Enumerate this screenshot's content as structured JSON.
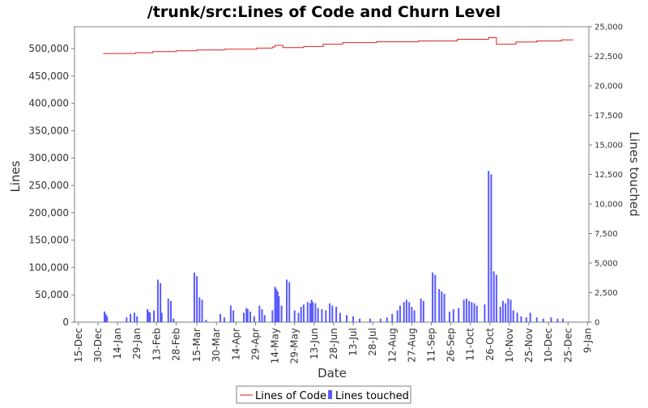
{
  "chart_data": {
    "type": "bar",
    "title": "/trunk/src:Lines of Code and Churn Level",
    "xlabel": "Date",
    "ylabel_left": "Lines",
    "ylabel_right": "Lines touched",
    "ylim_left": [
      0,
      540000
    ],
    "ylim_right": [
      0,
      25000
    ],
    "x_domain": [
      "2003-12-12",
      "2005-01-10"
    ],
    "x_ticks": [
      "15-Dec",
      "30-Dec",
      "14-Jan",
      "29-Jan",
      "13-Feb",
      "28-Feb",
      "15-Mar",
      "30-Mar",
      "14-Apr",
      "29-Apr",
      "14-May",
      "29-May",
      "13-Jun",
      "28-Jun",
      "13-Jul",
      "28-Jul",
      "12-Aug",
      "27-Aug",
      "11-Sep",
      "26-Sep",
      "11-Oct",
      "26-Oct",
      "10-Nov",
      "25-Nov",
      "10-Dec",
      "25-Dec",
      "9-Jan"
    ],
    "x_tick_dates": [
      "2003-12-15",
      "2003-12-30",
      "2004-01-14",
      "2004-01-29",
      "2004-02-13",
      "2004-02-28",
      "2004-03-15",
      "2004-03-30",
      "2004-04-14",
      "2004-04-29",
      "2004-05-14",
      "2004-05-29",
      "2004-06-13",
      "2004-06-28",
      "2004-07-13",
      "2004-07-28",
      "2004-08-12",
      "2004-08-27",
      "2004-09-11",
      "2004-09-26",
      "2004-10-11",
      "2004-10-26",
      "2004-11-10",
      "2004-11-25",
      "2004-12-10",
      "2004-12-25",
      "2005-01-09"
    ],
    "y_ticks_left": [
      0,
      50000,
      100000,
      150000,
      200000,
      250000,
      300000,
      350000,
      400000,
      450000,
      500000
    ],
    "y_tick_labels_left": [
      "0",
      "50,000",
      "100,000",
      "150,000",
      "200,000",
      "250,000",
      "300,000",
      "350,000",
      "400,000",
      "450,000",
      "500,000"
    ],
    "y_ticks_right": [
      0,
      2500,
      5000,
      7500,
      10000,
      12500,
      15000,
      17500,
      20000,
      22500,
      25000
    ],
    "y_tick_labels_right": [
      "0",
      "2,500",
      "5,000",
      "7,500",
      "10,000",
      "12,500",
      "15,000",
      "17,500",
      "20,000",
      "22,500",
      "25,000"
    ],
    "grid": false,
    "legend": "bottom-center",
    "series": [
      {
        "name": "Lines of Code",
        "axis": "left",
        "kind": "line",
        "color": "#dd2222",
        "points": [
          [
            "2004-01-03",
            491000
          ],
          [
            "2004-01-28",
            492500
          ],
          [
            "2004-02-10",
            494500
          ],
          [
            "2004-02-28",
            496000
          ],
          [
            "2004-03-15",
            497500
          ],
          [
            "2004-04-05",
            499000
          ],
          [
            "2004-04-30",
            501000
          ],
          [
            "2004-05-12",
            503000
          ],
          [
            "2004-05-14",
            506000
          ],
          [
            "2004-05-20",
            502000
          ],
          [
            "2004-06-05",
            504000
          ],
          [
            "2004-06-20",
            508000
          ],
          [
            "2004-07-05",
            511000
          ],
          [
            "2004-07-31",
            512500
          ],
          [
            "2004-09-01",
            514000
          ],
          [
            "2004-10-01",
            517000
          ],
          [
            "2004-10-25",
            520000
          ],
          [
            "2004-10-31",
            508000
          ],
          [
            "2004-11-15",
            512000
          ],
          [
            "2004-12-01",
            514000
          ],
          [
            "2004-12-20",
            516000
          ],
          [
            "2004-12-29",
            516000
          ]
        ]
      },
      {
        "name": "Lines touched",
        "axis": "right",
        "kind": "bar",
        "color": "#5a5aff",
        "points": [
          [
            "2004-01-04",
            900
          ],
          [
            "2004-01-05",
            700
          ],
          [
            "2004-01-06",
            500
          ],
          [
            "2004-01-21",
            400
          ],
          [
            "2004-01-24",
            700
          ],
          [
            "2004-01-27",
            800
          ],
          [
            "2004-01-29",
            500
          ],
          [
            "2004-02-06",
            1100
          ],
          [
            "2004-02-07",
            900
          ],
          [
            "2004-02-08",
            800
          ],
          [
            "2004-02-11",
            1000
          ],
          [
            "2004-02-14",
            3600
          ],
          [
            "2004-02-16",
            3300
          ],
          [
            "2004-02-17",
            800
          ],
          [
            "2004-02-22",
            2000
          ],
          [
            "2004-02-24",
            1800
          ],
          [
            "2004-02-26",
            300
          ],
          [
            "2004-03-13",
            4200
          ],
          [
            "2004-03-15",
            3900
          ],
          [
            "2004-03-17",
            2100
          ],
          [
            "2004-03-19",
            1900
          ],
          [
            "2004-03-22",
            200
          ],
          [
            "2004-04-02",
            700
          ],
          [
            "2004-04-05",
            400
          ],
          [
            "2004-04-10",
            1400
          ],
          [
            "2004-04-12",
            1000
          ],
          [
            "2004-04-20",
            800
          ],
          [
            "2004-04-22",
            1200
          ],
          [
            "2004-04-23",
            1100
          ],
          [
            "2004-04-25",
            900
          ],
          [
            "2004-04-28",
            500
          ],
          [
            "2004-05-02",
            1400
          ],
          [
            "2004-05-04",
            1100
          ],
          [
            "2004-05-06",
            600
          ],
          [
            "2004-05-12",
            1000
          ],
          [
            "2004-05-14",
            3000
          ],
          [
            "2004-05-15",
            2800
          ],
          [
            "2004-05-16",
            2600
          ],
          [
            "2004-05-17",
            2200
          ],
          [
            "2004-05-19",
            1400
          ],
          [
            "2004-05-23",
            3600
          ],
          [
            "2004-05-25",
            3400
          ],
          [
            "2004-05-29",
            1000
          ],
          [
            "2004-06-01",
            800
          ],
          [
            "2004-06-03",
            1300
          ],
          [
            "2004-06-05",
            1500
          ],
          [
            "2004-06-08",
            1700
          ],
          [
            "2004-06-10",
            1600
          ],
          [
            "2004-06-11",
            1900
          ],
          [
            "2004-06-12",
            1700
          ],
          [
            "2004-06-14",
            1600
          ],
          [
            "2004-06-16",
            1200
          ],
          [
            "2004-06-19",
            1100
          ],
          [
            "2004-06-22",
            1000
          ],
          [
            "2004-06-25",
            1600
          ],
          [
            "2004-06-27",
            1400
          ],
          [
            "2004-06-30",
            1300
          ],
          [
            "2004-07-03",
            800
          ],
          [
            "2004-07-08",
            600
          ],
          [
            "2004-07-13",
            500
          ],
          [
            "2004-07-18",
            300
          ],
          [
            "2004-07-26",
            300
          ],
          [
            "2004-08-03",
            300
          ],
          [
            "2004-08-08",
            400
          ],
          [
            "2004-08-12",
            700
          ],
          [
            "2004-08-16",
            1000
          ],
          [
            "2004-08-18",
            1400
          ],
          [
            "2004-08-21",
            1700
          ],
          [
            "2004-08-23",
            1900
          ],
          [
            "2004-08-25",
            1700
          ],
          [
            "2004-08-27",
            1300
          ],
          [
            "2004-08-29",
            1000
          ],
          [
            "2004-09-03",
            2000
          ],
          [
            "2004-09-05",
            1800
          ],
          [
            "2004-09-12",
            4200
          ],
          [
            "2004-09-14",
            4000
          ],
          [
            "2004-09-17",
            2800
          ],
          [
            "2004-09-19",
            2600
          ],
          [
            "2004-09-21",
            2400
          ],
          [
            "2004-09-25",
            900
          ],
          [
            "2004-09-28",
            1100
          ],
          [
            "2004-10-02",
            1200
          ],
          [
            "2004-10-06",
            1900
          ],
          [
            "2004-10-08",
            2000
          ],
          [
            "2004-10-10",
            1800
          ],
          [
            "2004-10-12",
            1700
          ],
          [
            "2004-10-14",
            1600
          ],
          [
            "2004-10-16",
            1400
          ],
          [
            "2004-10-22",
            1500
          ],
          [
            "2004-10-25",
            12800
          ],
          [
            "2004-10-27",
            12500
          ],
          [
            "2004-10-29",
            4300
          ],
          [
            "2004-10-31",
            4000
          ],
          [
            "2004-11-03",
            1300
          ],
          [
            "2004-11-05",
            1800
          ],
          [
            "2004-11-07",
            1600
          ],
          [
            "2004-11-09",
            2000
          ],
          [
            "2004-11-11",
            1900
          ],
          [
            "2004-11-13",
            1000
          ],
          [
            "2004-11-16",
            800
          ],
          [
            "2004-11-19",
            500
          ],
          [
            "2004-11-23",
            400
          ],
          [
            "2004-11-26",
            800
          ],
          [
            "2004-12-01",
            400
          ],
          [
            "2004-12-06",
            300
          ],
          [
            "2004-12-12",
            400
          ],
          [
            "2004-12-17",
            300
          ],
          [
            "2004-12-21",
            300
          ]
        ]
      }
    ]
  }
}
